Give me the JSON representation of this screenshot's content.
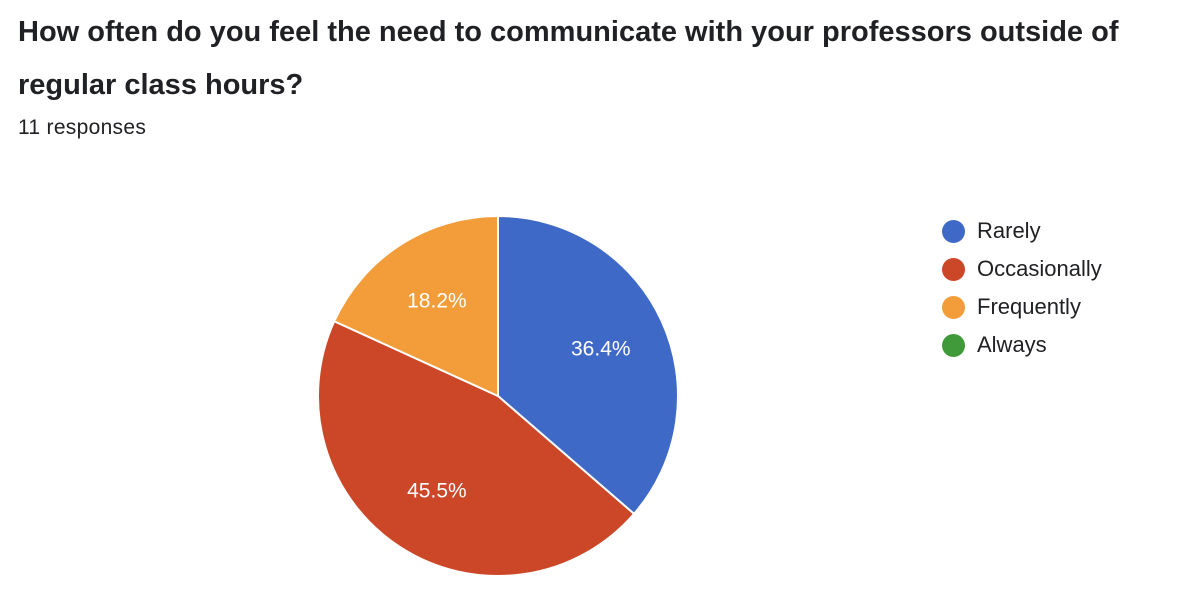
{
  "header": {
    "title": "How often do you feel the need to communicate with your professors outside of regular class hours?",
    "responses": "11 responses"
  },
  "chart_data": {
    "type": "pie",
    "title": "How often do you feel the need to communicate with your professors outside of regular class hours?",
    "total_responses": 11,
    "start_angle_deg": 90,
    "direction": "clockwise",
    "legend_position": "right",
    "slices": [
      {
        "label": "Rarely",
        "count": 4,
        "percent": 36.4,
        "percent_label": "36.4%",
        "color": "#3f69c7"
      },
      {
        "label": "Occasionally",
        "count": 5,
        "percent": 45.5,
        "percent_label": "45.5%",
        "color": "#cc4628"
      },
      {
        "label": "Frequently",
        "count": 2,
        "percent": 18.2,
        "percent_label": "18.2%",
        "color": "#f29d3a"
      },
      {
        "label": "Always",
        "count": 0,
        "percent": 0,
        "percent_label": "",
        "color": "#419a3a"
      }
    ]
  }
}
